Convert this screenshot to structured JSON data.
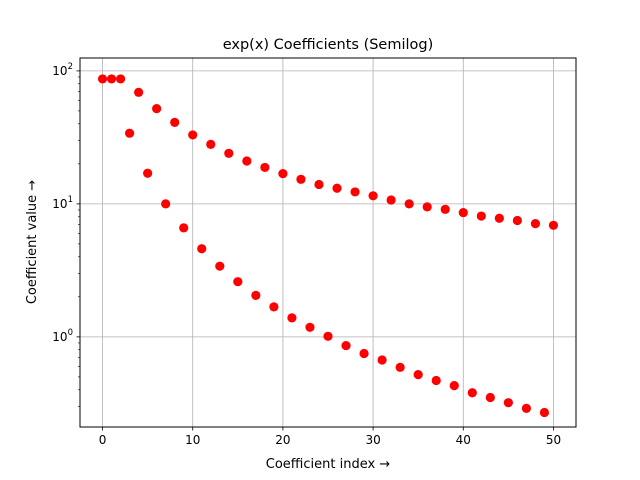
{
  "chart_data": {
    "type": "scatter",
    "title": "exp(x) Coefficients (Semilog)",
    "xlabel": "Coefficient index  →",
    "ylabel": "Coefficient value  →",
    "xlim": [
      -2.5,
      52.5
    ],
    "ylim": [
      0.21,
      125
    ],
    "yscale": "log",
    "grid": true,
    "marker": "circle",
    "color": "#ff0000",
    "x_ticks": [
      {
        "value": 0,
        "label": "0"
      },
      {
        "value": 10,
        "label": "10"
      },
      {
        "value": 20,
        "label": "20"
      },
      {
        "value": 30,
        "label": "30"
      },
      {
        "value": 40,
        "label": "40"
      },
      {
        "value": 50,
        "label": "50"
      }
    ],
    "y_ticks": [
      {
        "value": 1,
        "base": "10",
        "exp": "0"
      },
      {
        "value": 10,
        "base": "10",
        "exp": "1"
      },
      {
        "value": 100,
        "base": "10",
        "exp": "2"
      }
    ],
    "points": [
      [
        0,
        87
      ],
      [
        1,
        87
      ],
      [
        2,
        87
      ],
      [
        3,
        34
      ],
      [
        4,
        69
      ],
      [
        5,
        17
      ],
      [
        6,
        52
      ],
      [
        7,
        10
      ],
      [
        8,
        41
      ],
      [
        9,
        6.6
      ],
      [
        10,
        33
      ],
      [
        11,
        4.6
      ],
      [
        12,
        28
      ],
      [
        13,
        3.4
      ],
      [
        14,
        24
      ],
      [
        15,
        2.6
      ],
      [
        16,
        21
      ],
      [
        17,
        2.05
      ],
      [
        18,
        18.8
      ],
      [
        19,
        1.68
      ],
      [
        20,
        16.9
      ],
      [
        21,
        1.39
      ],
      [
        22,
        15.3
      ],
      [
        23,
        1.18
      ],
      [
        24,
        14.0
      ],
      [
        25,
        1.01
      ],
      [
        26,
        13.1
      ],
      [
        27,
        0.86
      ],
      [
        28,
        12.3
      ],
      [
        29,
        0.75
      ],
      [
        30,
        11.5
      ],
      [
        31,
        0.67
      ],
      [
        32,
        10.7
      ],
      [
        33,
        0.59
      ],
      [
        34,
        10.0
      ],
      [
        35,
        0.52
      ],
      [
        36,
        9.5
      ],
      [
        37,
        0.47
      ],
      [
        38,
        9.1
      ],
      [
        39,
        0.43
      ],
      [
        40,
        8.6
      ],
      [
        41,
        0.38
      ],
      [
        42,
        8.1
      ],
      [
        43,
        0.35
      ],
      [
        44,
        7.8
      ],
      [
        45,
        0.32
      ],
      [
        46,
        7.5
      ],
      [
        47,
        0.29
      ],
      [
        48,
        7.1
      ],
      [
        49,
        0.27
      ],
      [
        50,
        6.9
      ]
    ]
  }
}
